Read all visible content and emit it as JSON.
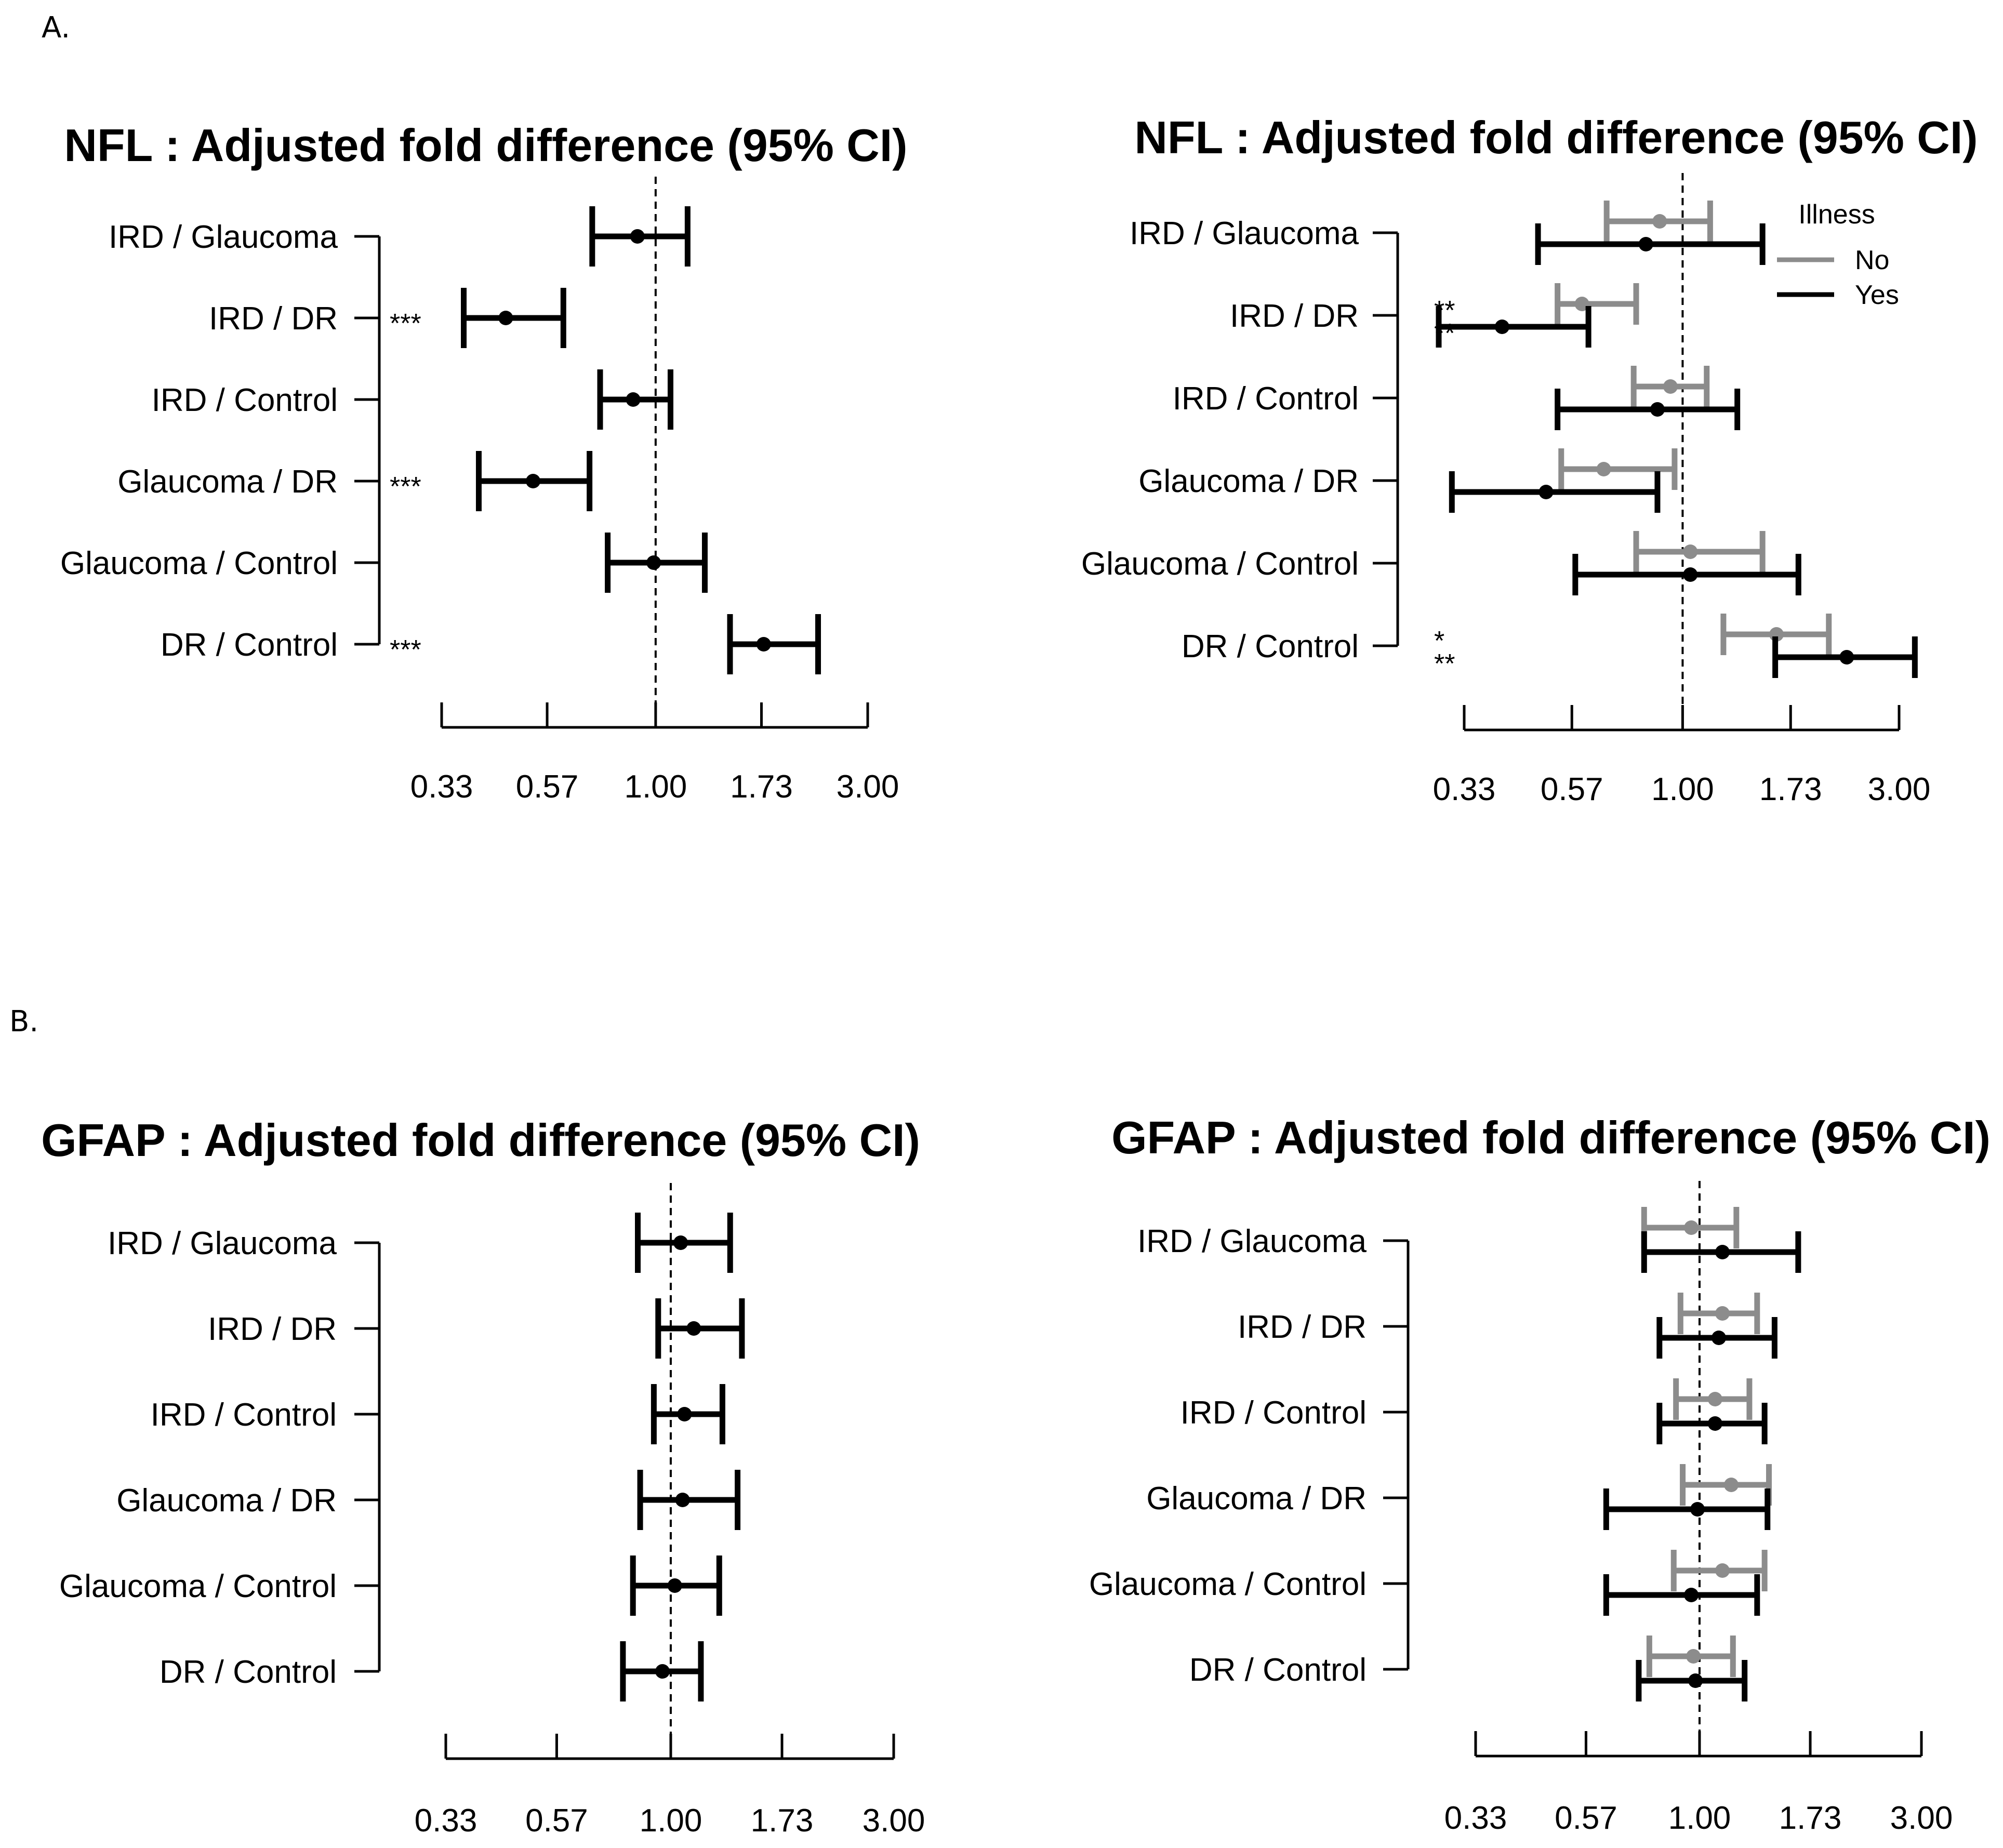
{
  "panel_labels": [
    "A.",
    "B."
  ],
  "colors": {
    "no": "#8c8c8c",
    "yes": "#000000",
    "single": "#000000"
  },
  "chart_data": [
    {
      "type": "forest",
      "title": "NFL : Adjusted fold difference (95% CI)",
      "categories": [
        "IRD / Glaucoma",
        "IRD / DR",
        "IRD / Control",
        "Glaucoma / DR",
        "Glaucoma / Control",
        "DR / Control"
      ],
      "x_scale": "log",
      "x_ticks": [
        "0.33",
        "0.57",
        "1.00",
        "1.73",
        "3.00"
      ],
      "reference_line": 1.0,
      "series": [
        {
          "color_key": "single",
          "estimate": [
            0.91,
            0.46,
            0.89,
            0.53,
            0.99,
            1.75
          ],
          "lower": [
            0.72,
            0.37,
            0.75,
            0.4,
            0.78,
            1.47
          ],
          "upper": [
            1.18,
            0.62,
            1.08,
            0.71,
            1.29,
            2.32
          ]
        }
      ],
      "significance": [
        "",
        "***",
        "",
        "***",
        "",
        "***"
      ]
    },
    {
      "type": "forest",
      "title": "NFL : Adjusted fold difference (95% CI)",
      "categories": [
        "IRD / Glaucoma",
        "IRD / DR",
        "IRD / Control",
        "Glaucoma / DR",
        "Glaucoma / Control",
        "DR / Control"
      ],
      "x_scale": "log",
      "x_ticks": [
        "0.33",
        "0.57",
        "1.00",
        "1.73",
        "3.00"
      ],
      "reference_line": 1.0,
      "legend": {
        "title": "Illness",
        "position": "top-right",
        "entries": [
          "No",
          "Yes"
        ]
      },
      "series": [
        {
          "name": "No",
          "color_key": "no",
          "estimate": [
            0.89,
            0.6,
            0.94,
            0.67,
            1.04,
            1.61
          ],
          "lower": [
            0.68,
            0.53,
            0.78,
            0.54,
            0.79,
            1.23
          ],
          "upper": [
            1.15,
            0.79,
            1.13,
            0.96,
            1.5,
            2.1
          ]
        },
        {
          "name": "Yes",
          "color_key": "yes",
          "estimate": [
            0.83,
            0.4,
            0.88,
            0.5,
            1.04,
            2.3
          ],
          "lower": [
            0.48,
            0.29,
            0.53,
            0.31,
            0.58,
            1.6
          ],
          "upper": [
            1.5,
            0.62,
            1.32,
            0.88,
            1.8,
            3.25
          ]
        }
      ],
      "significance": [
        [],
        [
          "**",
          "**"
        ],
        [],
        [],
        [],
        [
          "*",
          "**"
        ]
      ]
    },
    {
      "type": "forest",
      "title": "GFAP : Adjusted fold difference (95% CI)",
      "categories": [
        "IRD / Glaucoma",
        "IRD / DR",
        "IRD / Control",
        "Glaucoma / DR",
        "Glaucoma / Control",
        "DR / Control"
      ],
      "x_scale": "log",
      "x_ticks": [
        "0.33",
        "0.57",
        "1.00",
        "1.73",
        "3.00"
      ],
      "reference_line": 1.0,
      "series": [
        {
          "color_key": "single",
          "estimate": [
            1.05,
            1.12,
            1.07,
            1.06,
            1.02,
            0.96
          ],
          "lower": [
            0.85,
            0.94,
            0.92,
            0.86,
            0.83,
            0.79
          ],
          "upper": [
            1.34,
            1.42,
            1.29,
            1.39,
            1.27,
            1.16
          ]
        }
      ],
      "significance": [
        "",
        "",
        "",
        "",
        "",
        ""
      ]
    },
    {
      "type": "forest",
      "title": "GFAP : Adjusted fold difference (95% CI)",
      "categories": [
        "IRD / Glaucoma",
        "IRD / DR",
        "IRD / Control",
        "Glaucoma / DR",
        "Glaucoma / Control",
        "DR / Control"
      ],
      "x_scale": "log",
      "x_ticks": [
        "0.33",
        "0.57",
        "1.00",
        "1.73",
        "3.00"
      ],
      "reference_line": 1.0,
      "series": [
        {
          "name": "No",
          "color_key": "no",
          "estimate": [
            0.96,
            1.12,
            1.08,
            1.17,
            1.12,
            0.97
          ],
          "lower": [
            0.76,
            0.91,
            0.89,
            0.92,
            0.88,
            0.78
          ],
          "upper": [
            1.2,
            1.33,
            1.28,
            1.41,
            1.38,
            1.18
          ]
        },
        {
          "name": "Yes",
          "color_key": "yes",
          "estimate": [
            1.12,
            1.1,
            1.08,
            0.99,
            0.96,
            0.98
          ],
          "lower": [
            0.76,
            0.82,
            0.82,
            0.63,
            0.63,
            0.74
          ],
          "upper": [
            1.63,
            1.45,
            1.38,
            1.4,
            1.33,
            1.25
          ]
        }
      ],
      "significance": [
        [],
        [],
        [],
        [],
        [],
        []
      ]
    }
  ]
}
